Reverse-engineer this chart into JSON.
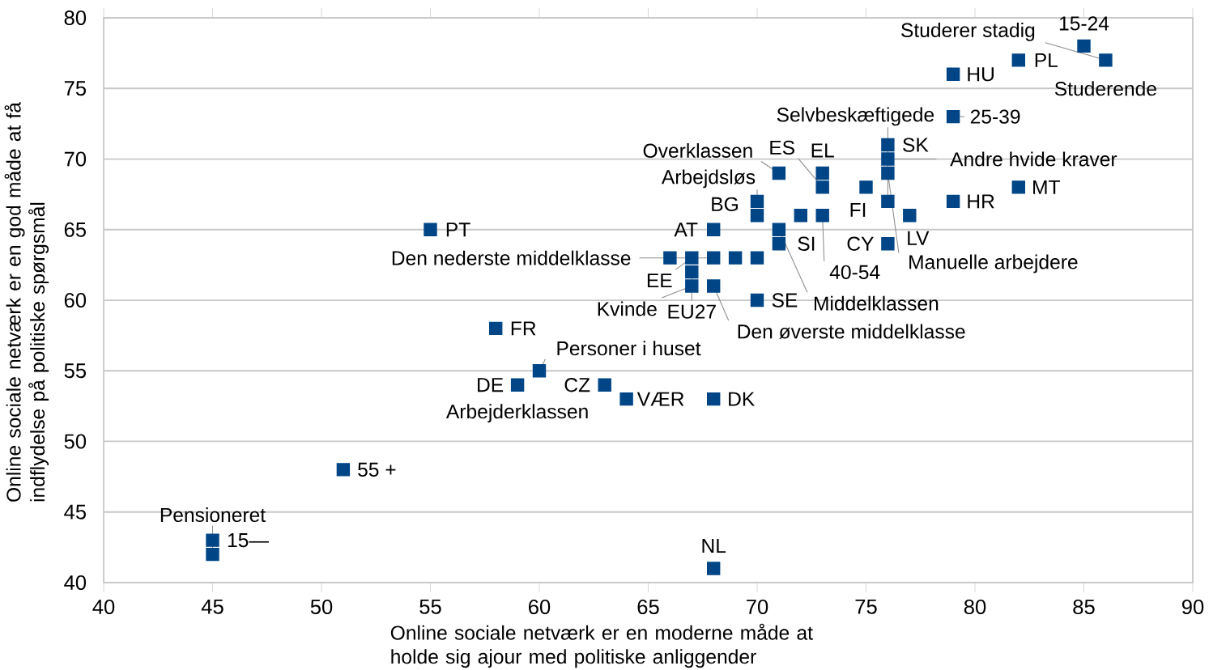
{
  "chart_data": {
    "type": "scatter",
    "xlabel": "Online sociale netværk er en moderne måde at holde sig ajour med politiske anliggender",
    "ylabel": "Online sociale netværk er en god måde at få indflydelse på politiske spørgsmål",
    "x": [
      85,
      86,
      82,
      79,
      79,
      76,
      76,
      76,
      75,
      76,
      77,
      79,
      82,
      71,
      73,
      73,
      70,
      70,
      72,
      73,
      68,
      71,
      71,
      76,
      66,
      67,
      68,
      69,
      70,
      67,
      67,
      68,
      70,
      58,
      60,
      59,
      63,
      64,
      68,
      51,
      45,
      45,
      68,
      55
    ],
    "series": [
      {
        "color": "#004586",
        "values": [
          78,
          77,
          77,
          76,
          73,
          71,
          70,
          69,
          68,
          67,
          66,
          67,
          68,
          69,
          69,
          68,
          67,
          66,
          66,
          66,
          65,
          65,
          64,
          64,
          63,
          63,
          63,
          63,
          63,
          62,
          61,
          61,
          60,
          58,
          55,
          54,
          54,
          53,
          53,
          48,
          43,
          42,
          41,
          65
        ]
      }
    ],
    "marker": "square",
    "xlim": [
      40,
      90
    ],
    "xticks": [
      40,
      45,
      50,
      55,
      60,
      65,
      70,
      75,
      80,
      85,
      90
    ],
    "ylim": [
      40,
      80
    ],
    "yticks": [
      40,
      45,
      50,
      55,
      60,
      65,
      70,
      75,
      80
    ],
    "grid": "y",
    "annotations": [
      {
        "text": "15-24",
        "x": 85,
        "y": 78
      },
      {
        "text": "Studerer stadig",
        "x": 86,
        "y": 77
      },
      {
        "text": "Studerende",
        "x": 86,
        "y": 77
      },
      {
        "text": "PL",
        "x": 82,
        "y": 77
      },
      {
        "text": "HU",
        "x": 79,
        "y": 76
      },
      {
        "text": "25-39",
        "x": 79,
        "y": 73
      },
      {
        "text": "SK",
        "x": 76,
        "y": 71
      },
      {
        "text": "Andre hvide kraver",
        "x": 76,
        "y": 70
      },
      {
        "text": "Manuelle arbejdere",
        "x": 76,
        "y": 69
      },
      {
        "text": "FI",
        "x": 75,
        "y": 68
      },
      {
        "text": "Selvbeskæftigede",
        "x": 76,
        "y": 67
      },
      {
        "text": "LV",
        "x": 77,
        "y": 66
      },
      {
        "text": "HR",
        "x": 79,
        "y": 67
      },
      {
        "text": "MT",
        "x": 82,
        "y": 68
      },
      {
        "text": "Overklassen",
        "x": 71,
        "y": 69
      },
      {
        "text": "EL",
        "x": 73,
        "y": 69
      },
      {
        "text": "ES",
        "x": 73,
        "y": 68
      },
      {
        "text": "Arbejdsløs",
        "x": 70,
        "y": 67
      },
      {
        "text": "BG",
        "x": 70,
        "y": 66
      },
      {
        "text": "40-54",
        "x": 73,
        "y": 66
      },
      {
        "text": "AT",
        "x": 68,
        "y": 65
      },
      {
        "text": "Middelklassen",
        "x": 71,
        "y": 65
      },
      {
        "text": "SI",
        "x": 71,
        "y": 64
      },
      {
        "text": "CY",
        "x": 76,
        "y": 64
      },
      {
        "text": "Den nederste middelklasse",
        "x": 68,
        "y": 63
      },
      {
        "text": "EE",
        "x": 67,
        "y": 63
      },
      {
        "text": "EU27",
        "x": 67,
        "y": 62
      },
      {
        "text": "Den øverste middelklasse",
        "x": 68,
        "y": 61
      },
      {
        "text": "Kvinde",
        "x": 67,
        "y": 61
      },
      {
        "text": "SE",
        "x": 70,
        "y": 60
      },
      {
        "text": "FR",
        "x": 58,
        "y": 58
      },
      {
        "text": "Personer i huset",
        "x": 60,
        "y": 55
      },
      {
        "text": "DE",
        "x": 59,
        "y": 54
      },
      {
        "text": "Arbejderklassen",
        "x": 59,
        "y": 54
      },
      {
        "text": "CZ",
        "x": 63,
        "y": 54
      },
      {
        "text": "VÆR",
        "x": 64,
        "y": 53
      },
      {
        "text": "DK",
        "x": 68,
        "y": 53
      },
      {
        "text": "55 +",
        "x": 51,
        "y": 48
      },
      {
        "text": "15—",
        "x": 45,
        "y": 43
      },
      {
        "text": "Pensioneret",
        "x": 45,
        "y": 42
      },
      {
        "text": "NL",
        "x": 68,
        "y": 41
      },
      {
        "text": "PT",
        "x": 55,
        "y": 65
      }
    ]
  }
}
